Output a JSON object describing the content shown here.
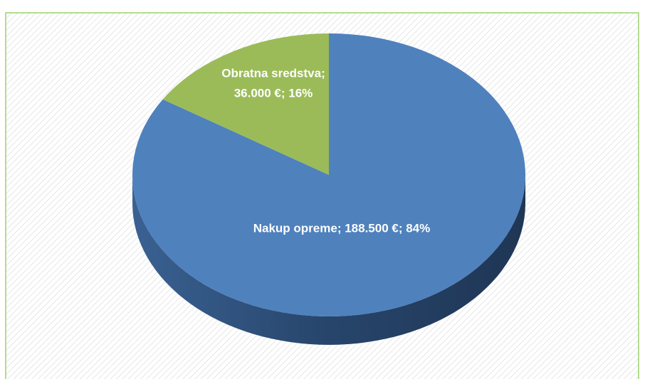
{
  "chart_data": {
    "type": "pie3d",
    "values": [
      188500,
      36000
    ],
    "value_labels": [
      [
        "Nakup opreme; 188.500 €; 84%"
      ],
      [
        "Obratna sredstva;",
        "36.000 €; 16%"
      ]
    ],
    "colors": [
      "#4f81bd",
      "#9bbb59"
    ],
    "side_color": "#2c4d75"
  }
}
